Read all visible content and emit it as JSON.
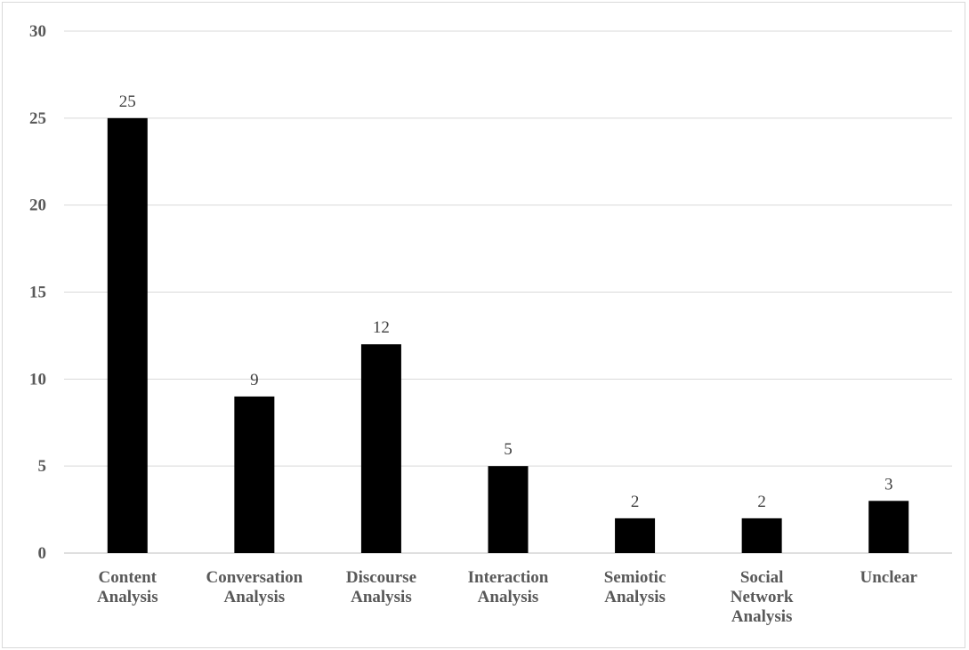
{
  "chart_data": {
    "type": "bar",
    "categories": [
      [
        "Content",
        "Analysis"
      ],
      [
        "Conversation",
        "Analysis"
      ],
      [
        "Discourse",
        "Analysis"
      ],
      [
        "Interaction",
        "Analysis"
      ],
      [
        "Semiotic",
        "Analysis"
      ],
      [
        "Social",
        "Network",
        "Analysis"
      ],
      [
        "Unclear"
      ]
    ],
    "values": [
      25,
      9,
      12,
      5,
      2,
      2,
      3
    ],
    "data_labels": [
      "25",
      "9",
      "12",
      "5",
      "2",
      "2",
      "3"
    ],
    "yticks": [
      "0",
      "5",
      "10",
      "15",
      "20",
      "25",
      "30"
    ],
    "ylim": [
      0,
      30
    ],
    "ystep": 5,
    "grid": true,
    "legend": "none",
    "colors": {
      "bar": "#000000",
      "grid": "#d9d9d9",
      "tick_text": "#595959",
      "label_text": "#404040"
    },
    "title": "",
    "xlabel": "",
    "ylabel": ""
  }
}
